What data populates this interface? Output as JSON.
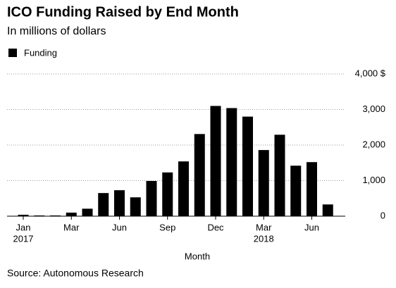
{
  "chart_data": {
    "type": "bar",
    "title": "ICO Funding Raised by End Month",
    "subtitle": "In millions of dollars",
    "x_label": "Month",
    "source": "Source: Autonomous Research",
    "legend": "top-left",
    "series": [
      {
        "name": "Funding",
        "color": "#000000",
        "values": [
          40,
          20,
          20,
          100,
          210,
          650,
          730,
          530,
          990,
          1230,
          1540,
          2310,
          3100,
          3040,
          2800,
          1860,
          2290,
          1420,
          1520,
          330
        ]
      }
    ],
    "categories": [
      "Jan",
      null,
      null,
      "Mar",
      null,
      null,
      "Jun",
      null,
      null,
      "Sep",
      null,
      null,
      "Dec",
      null,
      null,
      "Mar",
      null,
      null,
      "Jun",
      null
    ],
    "category_years": [
      "2017",
      null,
      null,
      null,
      null,
      null,
      null,
      null,
      null,
      null,
      null,
      null,
      null,
      null,
      null,
      "2018",
      null,
      null,
      null,
      null
    ],
    "ylim": [
      0,
      4000
    ],
    "yticks": [
      0,
      {
        "value": 1000,
        "label": "1,000"
      },
      {
        "value": 2000,
        "label": "2,000"
      },
      {
        "value": 3000,
        "label": "3,000"
      },
      {
        "value": 4000,
        "label": "4,000 $"
      }
    ],
    "grid": true
  }
}
